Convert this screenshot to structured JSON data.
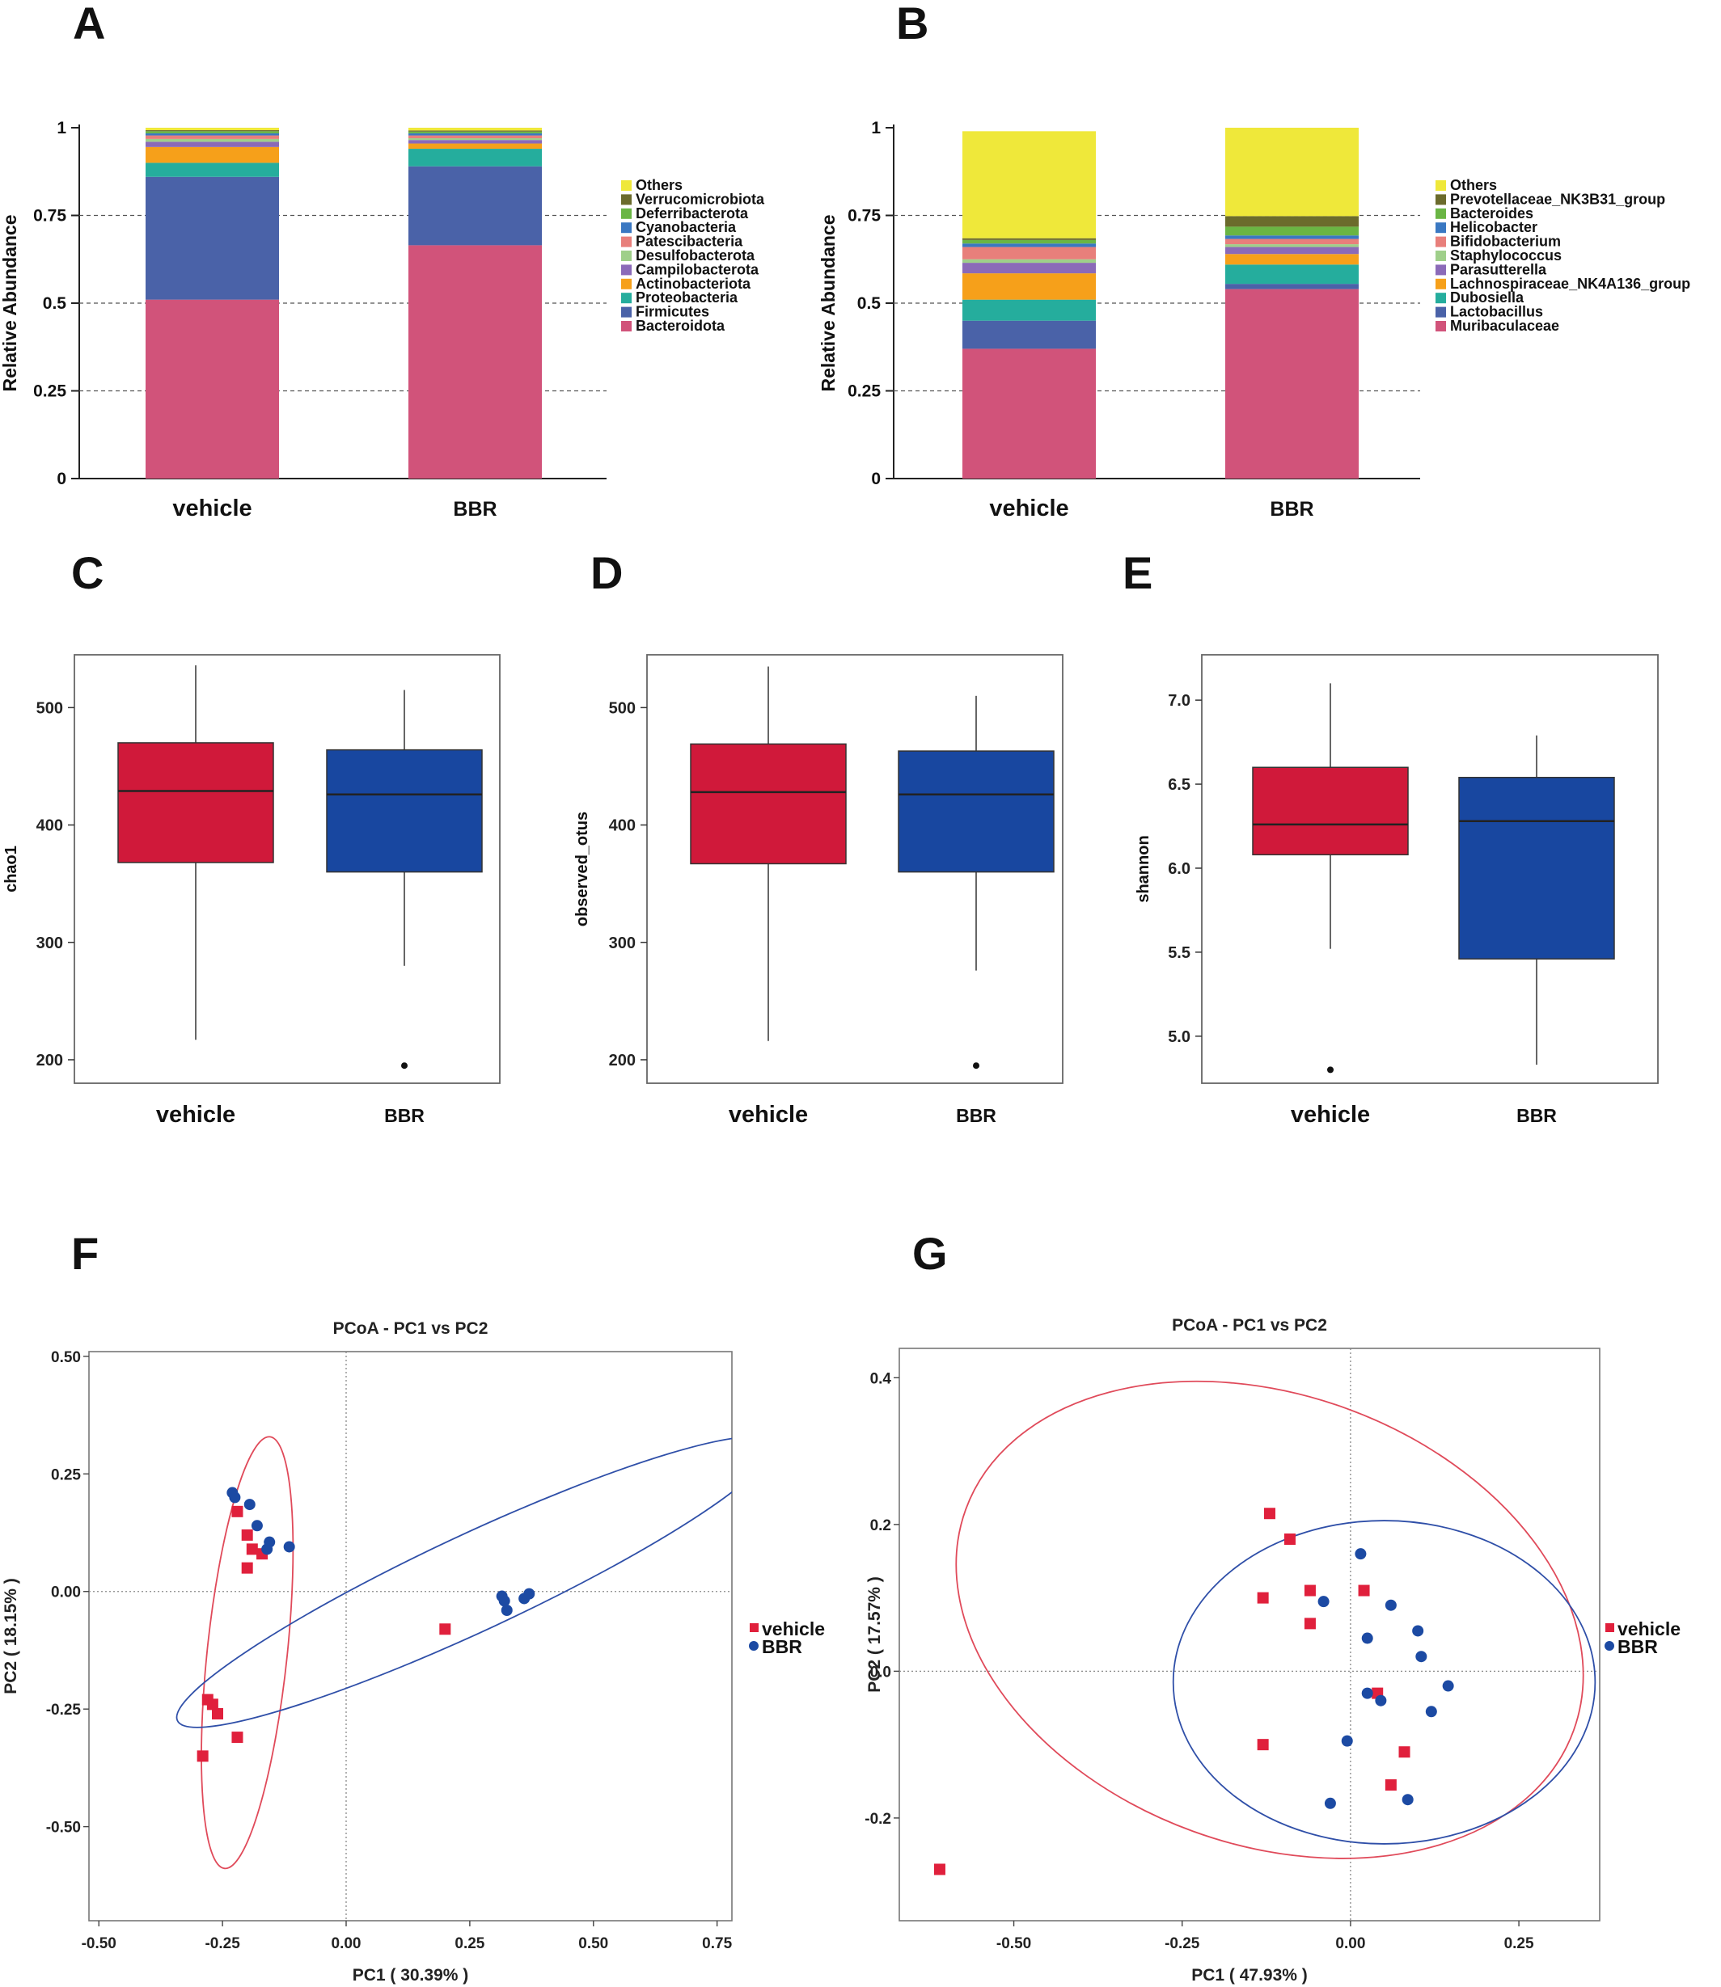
{
  "colors": {
    "vehicle": "#d0193a",
    "bbr": "#1847a0",
    "vehicle_point": "#e0203c",
    "bbr_point": "#1c4aa3",
    "ellipse_vehicle": "#e04a5a",
    "ellipse_bbr": "#2f4fa8"
  },
  "chart_data": [
    {
      "panel": "A",
      "type": "bar",
      "stacked": true,
      "categories": [
        "vehicle",
        "BBR"
      ],
      "ylabel": "Relative Abundance",
      "ylim": [
        0,
        1
      ],
      "yticks": [
        "0",
        "0.25",
        "0.5",
        "0.75",
        "1"
      ],
      "grid": "dashed at 0.25 / 0.5 / 0.75",
      "legend_placement": "right",
      "legend": [
        "Others",
        "Verrucomicrobiota",
        "Deferribacterota",
        "Cyanobacteria",
        "Patescibacteria",
        "Desulfobacterota",
        "Campilobacterota",
        "Actinobacteriota",
        "Proteobacteria",
        "Firmicutes",
        "Bacteroidota"
      ],
      "series": [
        {
          "name": "Bacteroidota",
          "color": "#d1537a",
          "values": [
            0.51,
            0.665
          ]
        },
        {
          "name": "Firmicutes",
          "color": "#4a62a8",
          "values": [
            0.35,
            0.225
          ]
        },
        {
          "name": "Proteobacteria",
          "color": "#25ad9d",
          "values": [
            0.04,
            0.05
          ]
        },
        {
          "name": "Actinobacteriota",
          "color": "#f6a01a",
          "values": [
            0.045,
            0.015
          ]
        },
        {
          "name": "Campilobacterota",
          "color": "#8b6ab8",
          "values": [
            0.015,
            0.01
          ]
        },
        {
          "name": "Desulfobacterota",
          "color": "#9fcf8a",
          "values": [
            0.008,
            0.005
          ]
        },
        {
          "name": "Patescibacteria",
          "color": "#e87f7b",
          "values": [
            0.01,
            0.008
          ]
        },
        {
          "name": "Cyanobacteria",
          "color": "#3a78c2",
          "values": [
            0.006,
            0.006
          ]
        },
        {
          "name": "Deferribacterota",
          "color": "#6ab544",
          "values": [
            0.006,
            0.005
          ]
        },
        {
          "name": "Verrucomicrobiota",
          "color": "#6b6b2c",
          "values": [
            0.003,
            0.003
          ]
        },
        {
          "name": "Others",
          "color": "#efe83a",
          "values": [
            0.007,
            0.008
          ]
        }
      ]
    },
    {
      "panel": "B",
      "type": "bar",
      "stacked": true,
      "categories": [
        "vehicle",
        "BBR"
      ],
      "ylabel": "Relative Abundance",
      "ylim": [
        0,
        1
      ],
      "yticks": [
        "0",
        "0.25",
        "0.5",
        "0.75",
        "1"
      ],
      "grid": "dashed at 0.25 / 0.5 / 0.75",
      "legend_placement": "right",
      "legend": [
        "Others",
        "Prevotellaceae_NK3B31_group",
        "Bacteroides",
        "Helicobacter",
        "Bifidobacterium",
        "Staphylococcus",
        "Parasutterella",
        "Lachnospiraceae_NK4A136_group",
        "Dubosiella",
        "Lactobacillus",
        "Muribaculaceae"
      ],
      "series": [
        {
          "name": "Muribaculaceae",
          "color": "#d1537a",
          "values": [
            0.37,
            0.54
          ]
        },
        {
          "name": "Lactobacillus",
          "color": "#4a62a8",
          "values": [
            0.08,
            0.015
          ]
        },
        {
          "name": "Dubosiella",
          "color": "#25ad9d",
          "values": [
            0.06,
            0.055
          ]
        },
        {
          "name": "Lachnospiraceae_NK4A136_group",
          "color": "#f6a01a",
          "values": [
            0.075,
            0.03
          ]
        },
        {
          "name": "Parasutterella",
          "color": "#8b6ab8",
          "values": [
            0.03,
            0.02
          ]
        },
        {
          "name": "Staphylococcus",
          "color": "#9fcf8a",
          "values": [
            0.01,
            0.008
          ]
        },
        {
          "name": "Bifidobacterium",
          "color": "#e87f7b",
          "values": [
            0.035,
            0.015
          ]
        },
        {
          "name": "Helicobacter",
          "color": "#3a78c2",
          "values": [
            0.01,
            0.01
          ]
        },
        {
          "name": "Bacteroides",
          "color": "#6ab544",
          "values": [
            0.01,
            0.025
          ]
        },
        {
          "name": "Prevotellaceae_NK3B31_group",
          "color": "#6b6b2c",
          "values": [
            0.005,
            0.03
          ]
        },
        {
          "name": "Others",
          "color": "#efe83a",
          "values": [
            0.305,
            0.252
          ]
        }
      ]
    },
    {
      "panel": "C",
      "type": "box",
      "ylabel": "chao1",
      "ylim": [
        180,
        545
      ],
      "yticks": [
        200,
        300,
        400,
        500
      ],
      "categories": [
        "vehicle",
        "BBR"
      ],
      "boxes": [
        {
          "name": "vehicle",
          "min": 217,
          "q1": 368,
          "median": 429,
          "q3": 470,
          "max": 536,
          "outliers": []
        },
        {
          "name": "BBR",
          "min": 280,
          "q1": 360,
          "median": 426,
          "q3": 464,
          "max": 515,
          "outliers": [
            195
          ]
        }
      ]
    },
    {
      "panel": "D",
      "type": "box",
      "ylabel": "observed_otus",
      "ylim": [
        180,
        545
      ],
      "yticks": [
        200,
        300,
        400,
        500
      ],
      "categories": [
        "vehicle",
        "BBR"
      ],
      "boxes": [
        {
          "name": "vehicle",
          "min": 216,
          "q1": 367,
          "median": 428,
          "q3": 469,
          "max": 535,
          "outliers": []
        },
        {
          "name": "BBR",
          "min": 276,
          "q1": 360,
          "median": 426,
          "q3": 463,
          "max": 510,
          "outliers": [
            195
          ]
        }
      ]
    },
    {
      "panel": "E",
      "type": "box",
      "ylabel": "shannon",
      "ylim": [
        4.72,
        7.27
      ],
      "yticks": [
        "5.0",
        "5.5",
        "6.0",
        "6.5",
        "7.0"
      ],
      "categories": [
        "vehicle",
        "BBR"
      ],
      "boxes": [
        {
          "name": "vehicle",
          "min": 5.52,
          "q1": 6.08,
          "median": 6.26,
          "q3": 6.6,
          "max": 7.1,
          "outliers": [
            4.8
          ]
        },
        {
          "name": "BBR",
          "min": 4.83,
          "q1": 5.46,
          "median": 6.28,
          "q3": 6.54,
          "max": 6.79,
          "outliers": []
        }
      ]
    },
    {
      "panel": "F",
      "type": "scatter",
      "title": "PCoA - PC1 vs PC2",
      "xlabel": "PC1 ( 30.39% )",
      "ylabel": "PC2 ( 18.15% )",
      "xlim": [
        -0.52,
        0.78
      ],
      "ylim": [
        -0.7,
        0.51
      ],
      "xticks": [
        "-0.50",
        "-0.25",
        "0.00",
        "0.25",
        "0.50",
        "0.75"
      ],
      "yticks": [
        "0.50",
        "0.25",
        "0.00",
        "-0.25",
        "-0.50"
      ],
      "legend": [
        "vehicle",
        "BBR"
      ],
      "legend_placement": "right",
      "series": [
        {
          "name": "vehicle",
          "marker": "square",
          "points": [
            [
              -0.22,
              0.17
            ],
            [
              -0.2,
              0.12
            ],
            [
              -0.19,
              0.09
            ],
            [
              -0.17,
              0.08
            ],
            [
              -0.2,
              0.05
            ],
            [
              0.2,
              -0.08
            ],
            [
              -0.28,
              -0.23
            ],
            [
              -0.27,
              -0.24
            ],
            [
              -0.26,
              -0.26
            ],
            [
              -0.22,
              -0.31
            ],
            [
              -0.29,
              -0.35
            ]
          ]
        },
        {
          "name": "BBR",
          "marker": "circle",
          "points": [
            [
              -0.23,
              0.21
            ],
            [
              -0.225,
              0.2
            ],
            [
              -0.195,
              0.185
            ],
            [
              -0.18,
              0.14
            ],
            [
              -0.155,
              0.105
            ],
            [
              -0.16,
              0.09
            ],
            [
              -0.115,
              0.095
            ],
            [
              0.315,
              -0.01
            ],
            [
              0.32,
              -0.02
            ],
            [
              0.325,
              -0.04
            ],
            [
              0.36,
              -0.015
            ],
            [
              0.37,
              -0.005
            ]
          ]
        }
      ],
      "ellipses": [
        {
          "name": "vehicle",
          "cx": -0.2,
          "cy": -0.13,
          "rx": 0.45,
          "ry": 0.083,
          "angle_deg": -84
        },
        {
          "name": "BBR",
          "cx": 0.26,
          "cy": 0.02,
          "rx": 0.68,
          "ry": 0.1,
          "angle_deg": -25
        }
      ]
    },
    {
      "panel": "G",
      "type": "scatter",
      "title": "PCoA - PC1 vs PC2",
      "xlabel": "PC1 ( 47.93% )",
      "ylabel": "PC2 ( 17.57% )",
      "xlim": [
        -0.67,
        0.37
      ],
      "ylim": [
        -0.34,
        0.44
      ],
      "xticks": [
        "-0.50",
        "-0.25",
        "0.00",
        "0.25"
      ],
      "yticks": [
        "0.4",
        "0.2",
        "0.0",
        "-0.2"
      ],
      "legend": [
        "vehicle",
        "BBR"
      ],
      "legend_placement": "right",
      "series": [
        {
          "name": "vehicle",
          "marker": "square",
          "points": [
            [
              -0.12,
              0.215
            ],
            [
              -0.09,
              0.18
            ],
            [
              -0.13,
              0.1
            ],
            [
              -0.06,
              0.11
            ],
            [
              -0.06,
              0.065
            ],
            [
              0.02,
              0.11
            ],
            [
              -0.13,
              -0.1
            ],
            [
              0.04,
              -0.03
            ],
            [
              0.08,
              -0.11
            ],
            [
              0.06,
              -0.155
            ],
            [
              -0.61,
              -0.27
            ]
          ]
        },
        {
          "name": "BBR",
          "marker": "circle",
          "points": [
            [
              0.015,
              0.16
            ],
            [
              -0.04,
              0.095
            ],
            [
              0.025,
              0.045
            ],
            [
              0.06,
              0.09
            ],
            [
              0.1,
              0.055
            ],
            [
              0.105,
              0.02
            ],
            [
              0.145,
              -0.02
            ],
            [
              0.025,
              -0.03
            ],
            [
              0.045,
              -0.04
            ],
            [
              0.12,
              -0.055
            ],
            [
              -0.005,
              -0.095
            ],
            [
              0.085,
              -0.175
            ],
            [
              -0.03,
              -0.18
            ]
          ]
        }
      ],
      "ellipses": [
        {
          "name": "vehicle",
          "cx": -0.12,
          "cy": 0.07,
          "rx": 0.46,
          "ry": 0.32,
          "angle_deg": 20
        },
        {
          "name": "BBR",
          "cx": 0.05,
          "cy": -0.015,
          "rx": 0.3,
          "ry": 0.23,
          "angle_deg": 0
        }
      ]
    }
  ]
}
